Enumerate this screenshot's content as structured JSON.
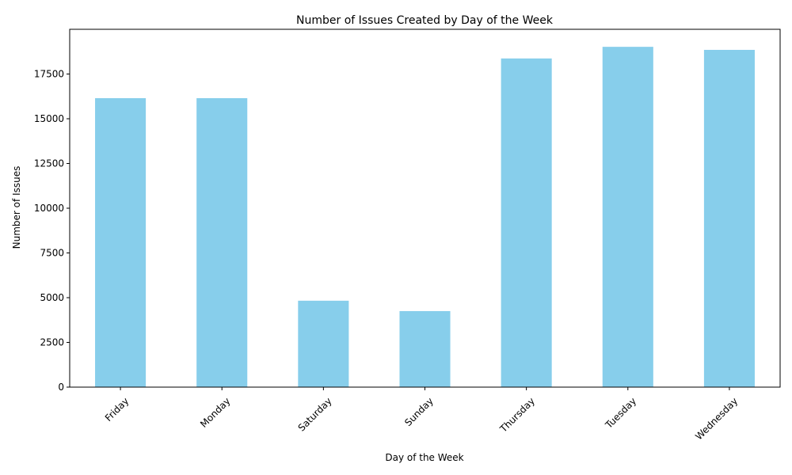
{
  "chart_data": {
    "type": "bar",
    "title": "Number of Issues Created by Day of the Week",
    "xlabel": "Day of the Week",
    "ylabel": "Number of Issues",
    "categories": [
      "Friday",
      "Monday",
      "Saturday",
      "Sunday",
      "Thursday",
      "Tuesday",
      "Wednesday"
    ],
    "values": [
      16150,
      16150,
      4830,
      4250,
      18370,
      19020,
      18850
    ],
    "ylim": [
      0,
      20000
    ],
    "yticks": [
      0,
      2500,
      5000,
      7500,
      10000,
      12500,
      15000,
      17500
    ],
    "bar_color": "#87CEEB",
    "grid": false,
    "legend": "none",
    "xtick_rotation": "45 degrees"
  }
}
